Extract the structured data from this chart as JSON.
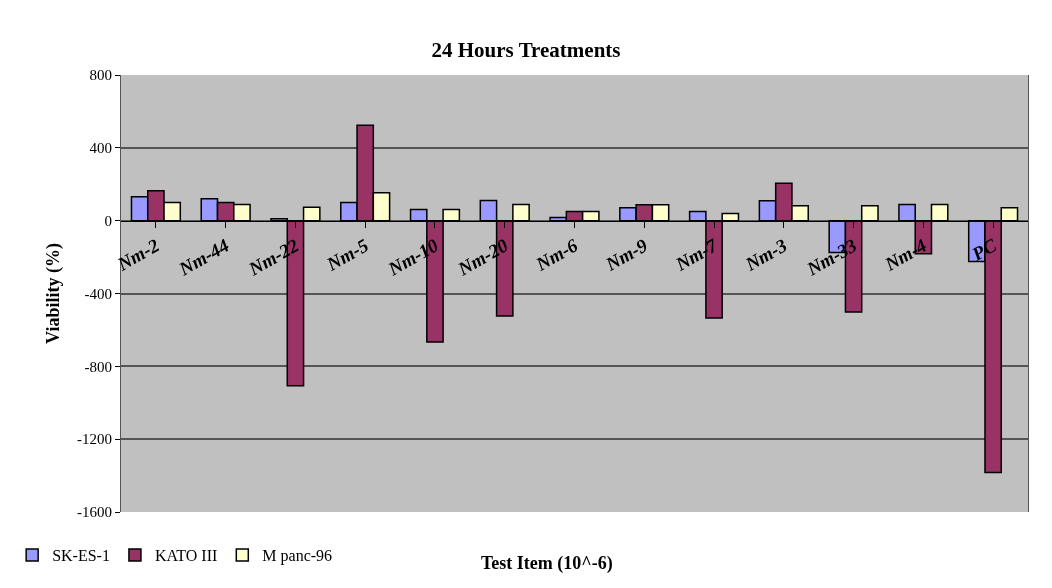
{
  "chart_data": {
    "type": "bar",
    "title": "24 Hours Treatments",
    "xlabel": "Test Item (10^-6)",
    "ylabel": "Viability (%)",
    "categories": [
      "Nm-2",
      "Nm-44",
      "Nm-22",
      "Nm-5",
      "Nm-10",
      "Nm-20",
      "Nm-6",
      "Nm-9",
      "Nm-7",
      "Nm-3",
      "Nm-33",
      "Nm-4",
      "PC"
    ],
    "series": [
      {
        "name": "SK-ES-1",
        "color": "#9999ff",
        "values": [
          131,
          120,
          11,
          100,
          62,
          111,
          18,
          71,
          51,
          109,
          -175,
          89,
          -224
        ]
      },
      {
        "name": "KATO III",
        "color": "#993366",
        "values": [
          164,
          100,
          -906,
          524,
          -666,
          -524,
          51,
          87,
          -535,
          206,
          -502,
          -182,
          -1383
        ]
      },
      {
        "name": "M panc-96",
        "color": "#ffffcc",
        "values": [
          100,
          89,
          73,
          153,
          62,
          89,
          51,
          87,
          40,
          82,
          82,
          89,
          71
        ]
      }
    ],
    "ylim": [
      -1600,
      800
    ],
    "yticks": [
      -1600,
      -1200,
      -800,
      -400,
      0,
      400,
      800
    ],
    "grid": "y",
    "legend": "bottom left"
  }
}
